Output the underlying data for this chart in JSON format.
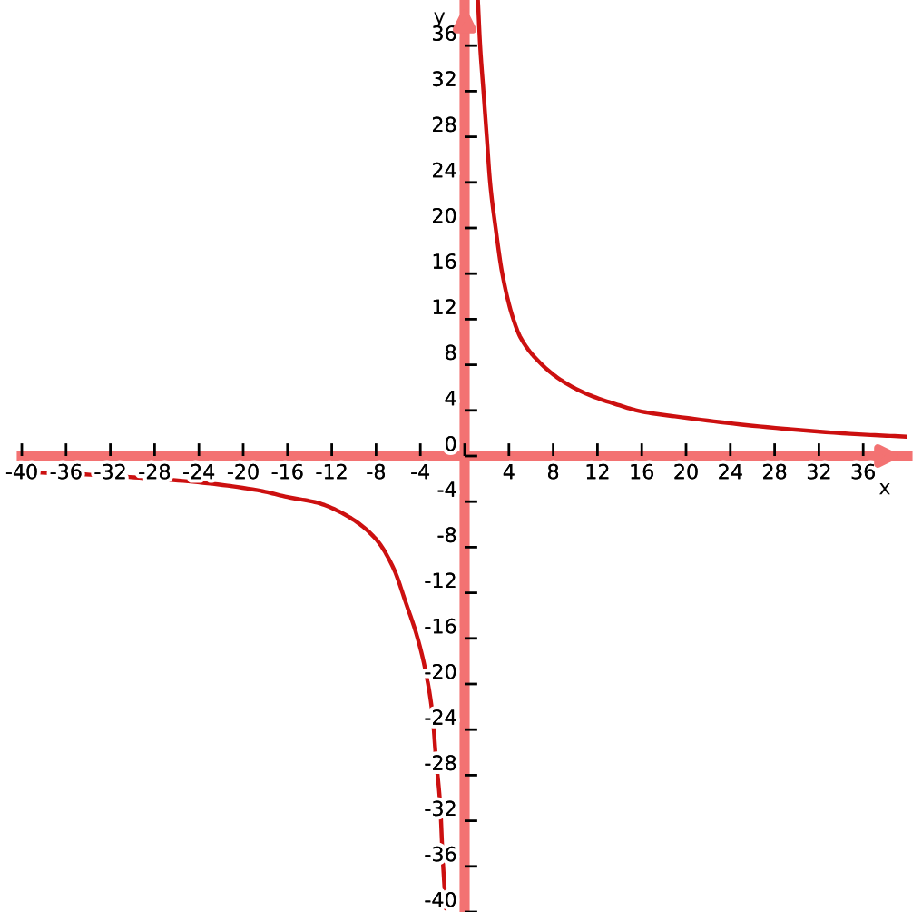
{
  "chart_data": {
    "type": "line",
    "xlabel": "x",
    "ylabel": "y",
    "xlim": [
      -40,
      40
    ],
    "ylim": [
      -40,
      40
    ],
    "xticks": [
      -40,
      -36,
      -32,
      -28,
      -24,
      -20,
      -16,
      -12,
      -8,
      -4,
      {
        "value": 0,
        "label": null
      },
      4,
      8,
      12,
      16,
      20,
      24,
      28,
      32,
      36
    ],
    "yticks": [
      -40,
      -36,
      -32,
      -28,
      -24,
      -20,
      -16,
      -12,
      -8,
      -4,
      0,
      4,
      8,
      12,
      16,
      20,
      24,
      28,
      32,
      36
    ],
    "series": [
      {
        "color": "#cc1010",
        "x": [
          1.2,
          1.4,
          1.7,
          2.0,
          2.3,
          2.8,
          3.4,
          4.4,
          5.1,
          7.0,
          8.8,
          10.9,
          13.8,
          16.0,
          19.6,
          26.6,
          35.6,
          39.9
        ],
        "values": [
          40,
          36,
          32,
          28,
          24,
          20,
          16,
          12,
          10.3,
          8.0,
          6.6,
          5.5,
          4.5,
          3.9,
          3.4,
          2.6,
          1.9,
          1.7
        ]
      },
      {
        "color": "#cc1010",
        "x": [
          -40,
          -34.7,
          -29.4,
          -24.1,
          -18.7,
          -16.0,
          -13.3,
          -10.7,
          -8.0,
          -6.4,
          -5.3,
          -4.3,
          -3.5,
          -2.9,
          -2.6,
          -2.2,
          -2.0,
          -1.7
        ],
        "values": [
          -1.4,
          -1.6,
          -1.9,
          -2.3,
          -3.0,
          -3.6,
          -4.1,
          -5.2,
          -7.3,
          -9.9,
          -12.9,
          -15.8,
          -19.0,
          -22.7,
          -26.4,
          -30.7,
          -34.9,
          -39.7
        ]
      }
    ]
  }
}
